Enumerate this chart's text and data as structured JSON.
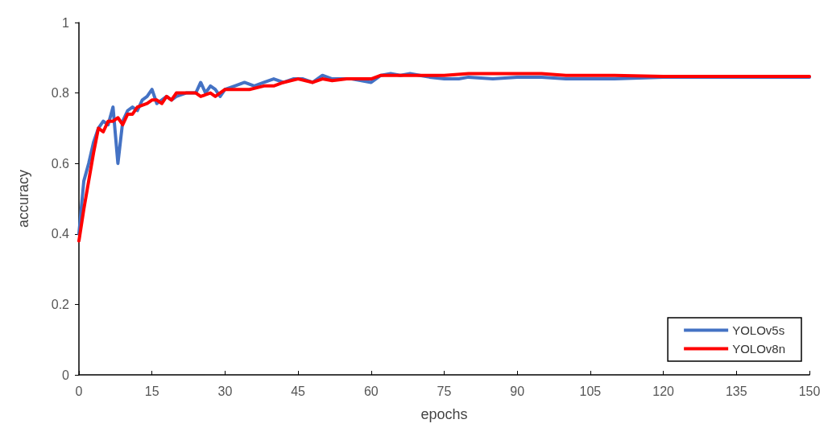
{
  "chart_data": {
    "type": "line",
    "xlabel": "epochs",
    "ylabel": "accuracy",
    "xlim": [
      0,
      150
    ],
    "xticks": [
      0,
      15,
      30,
      45,
      60,
      75,
      90,
      105,
      120,
      135,
      150
    ],
    "ylim": [
      0,
      1
    ],
    "yticks": [
      0,
      0.2,
      0.4,
      0.6,
      0.8,
      1
    ],
    "grid": false,
    "legend": "bottom right",
    "marker": "none",
    "line_style": "solid",
    "series": [
      {
        "name": "YOLOv5s",
        "color": "#4472c4",
        "x": [
          0,
          1,
          2,
          3,
          4,
          5,
          6,
          7,
          8,
          9,
          10,
          11,
          12,
          13,
          14,
          15,
          16,
          17,
          18,
          19,
          20,
          22,
          24,
          25,
          26,
          27,
          28,
          29,
          30,
          32,
          34,
          36,
          38,
          40,
          42,
          44,
          46,
          48,
          50,
          52,
          54,
          56,
          60,
          62,
          64,
          66,
          68,
          70,
          72,
          75,
          78,
          80,
          85,
          90,
          95,
          100,
          105,
          110,
          120,
          130,
          140,
          150
        ],
        "values": [
          0.4,
          0.55,
          0.6,
          0.66,
          0.7,
          0.72,
          0.71,
          0.76,
          0.6,
          0.72,
          0.75,
          0.76,
          0.75,
          0.78,
          0.79,
          0.81,
          0.77,
          0.78,
          0.79,
          0.78,
          0.79,
          0.8,
          0.8,
          0.83,
          0.8,
          0.82,
          0.81,
          0.79,
          0.81,
          0.82,
          0.83,
          0.82,
          0.83,
          0.84,
          0.83,
          0.84,
          0.84,
          0.83,
          0.85,
          0.84,
          0.84,
          0.84,
          0.83,
          0.85,
          0.855,
          0.85,
          0.855,
          0.85,
          0.845,
          0.84,
          0.84,
          0.845,
          0.84,
          0.845,
          0.845,
          0.84,
          0.84,
          0.84,
          0.845,
          0.845,
          0.845,
          0.845
        ]
      },
      {
        "name": "YOLOv8n",
        "color": "#ff0000",
        "x": [
          0,
          1,
          2,
          3,
          4,
          5,
          6,
          7,
          8,
          9,
          10,
          11,
          12,
          14,
          15,
          16,
          17,
          18,
          19,
          20,
          22,
          24,
          25,
          27,
          28,
          30,
          32,
          35,
          38,
          40,
          42,
          45,
          48,
          50,
          52,
          55,
          58,
          60,
          62,
          65,
          68,
          70,
          75,
          80,
          85,
          90,
          95,
          100,
          110,
          120,
          130,
          140,
          150
        ],
        "values": [
          0.38,
          0.47,
          0.55,
          0.63,
          0.7,
          0.69,
          0.72,
          0.72,
          0.73,
          0.71,
          0.74,
          0.74,
          0.76,
          0.77,
          0.78,
          0.78,
          0.77,
          0.79,
          0.78,
          0.8,
          0.8,
          0.8,
          0.79,
          0.8,
          0.79,
          0.81,
          0.81,
          0.81,
          0.82,
          0.82,
          0.83,
          0.84,
          0.83,
          0.84,
          0.835,
          0.84,
          0.84,
          0.84,
          0.85,
          0.85,
          0.85,
          0.85,
          0.85,
          0.855,
          0.855,
          0.855,
          0.855,
          0.85,
          0.85,
          0.847,
          0.847,
          0.847,
          0.847
        ]
      }
    ]
  }
}
